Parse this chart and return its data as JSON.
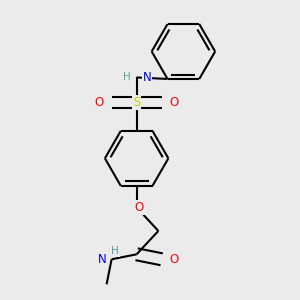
{
  "background_color": "#ebebeb",
  "atom_colors": {
    "C": "#000000",
    "H": "#5f9ea0",
    "N": "#0000ff",
    "O": "#ff0000",
    "S": "#cccc00"
  },
  "bond_color": "#000000",
  "bond_width": 1.5,
  "figsize": [
    3.0,
    3.0
  ],
  "dpi": 100
}
